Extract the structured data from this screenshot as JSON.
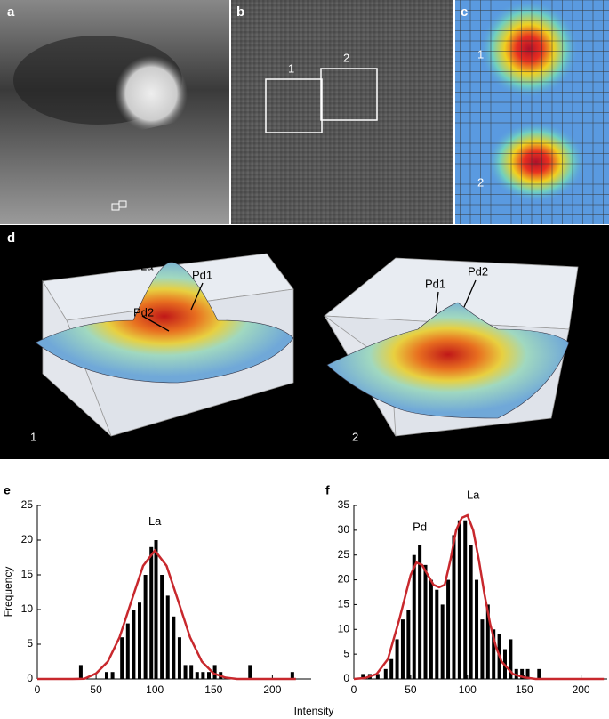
{
  "panels": {
    "a": {
      "letter": "a"
    },
    "b": {
      "letter": "b",
      "boxes": [
        "1",
        "2"
      ]
    },
    "c": {
      "letter": "c",
      "labels": [
        "1",
        "2"
      ]
    },
    "d": {
      "letter": "d",
      "plots": [
        {
          "label": "1",
          "annotations": [
            "La",
            "Pd1",
            "Pd2"
          ]
        },
        {
          "label": "2",
          "annotations": [
            "Pd1",
            "Pd2"
          ]
        }
      ]
    }
  },
  "shared_xlabel": "Intensity",
  "chart_data": [
    {
      "type": "bar",
      "panel": "e",
      "ylabel": "Frequency",
      "annotations": [
        "La"
      ],
      "x": [
        37,
        59,
        64,
        72,
        77,
        82,
        87,
        92,
        97,
        101,
        106,
        111,
        116,
        121,
        126,
        131,
        136,
        141,
        146,
        151,
        156,
        181,
        217
      ],
      "values": [
        2,
        1,
        1,
        6,
        8,
        10,
        11,
        15,
        19,
        20,
        15,
        12,
        9,
        6,
        2,
        2,
        1,
        1,
        1,
        2,
        1,
        2,
        1
      ],
      "color": "#000000",
      "fit": {
        "x": [
          0,
          10,
          20,
          30,
          40,
          50,
          60,
          70,
          80,
          90,
          100,
          110,
          120,
          130,
          140,
          150,
          160,
          170,
          180,
          200,
          220
        ],
        "values": [
          0,
          0,
          0,
          0,
          0.02,
          0.8,
          2.5,
          6,
          11.2,
          16.3,
          18.5,
          16.3,
          11.2,
          6,
          2.5,
          0.8,
          0.2,
          0,
          0,
          0,
          0
        ],
        "color": "#c8282d"
      },
      "xlim": [
        0,
        233
      ],
      "ylim": [
        0,
        25
      ],
      "xticks": [
        0,
        50,
        100,
        150,
        200
      ],
      "yticks": [
        0,
        5,
        10,
        15,
        20,
        25
      ]
    },
    {
      "type": "bar",
      "panel": "f",
      "annotations": [
        "Pd",
        "La"
      ],
      "x": [
        8,
        14,
        21,
        28,
        33,
        38,
        43,
        48,
        53,
        58,
        63,
        68,
        73,
        78,
        83,
        88,
        93,
        98,
        103,
        108,
        113,
        118,
        123,
        128,
        133,
        138,
        143,
        148,
        153,
        163
      ],
      "values": [
        1,
        1,
        1,
        2,
        4,
        8,
        12,
        14,
        25,
        27,
        23,
        20,
        18,
        15,
        20,
        29,
        32,
        32,
        27,
        20,
        12,
        15,
        10,
        9,
        6,
        8,
        2,
        2,
        2,
        2
      ],
      "color": "#000000",
      "fit": {
        "x": [
          0,
          10,
          20,
          30,
          40,
          50,
          55,
          60,
          65,
          70,
          75,
          80,
          85,
          90,
          95,
          100,
          105,
          110,
          115,
          120,
          125,
          130,
          140,
          150,
          160,
          180,
          220
        ],
        "values": [
          0,
          0.2,
          1,
          4,
          12,
          21,
          23.5,
          23,
          21,
          19,
          18.5,
          19,
          24,
          30,
          32.5,
          33,
          30,
          24,
          17,
          11,
          6.5,
          3.5,
          1,
          0.3,
          0,
          0,
          0
        ],
        "color": "#c8282d"
      },
      "xlim": [
        0,
        223
      ],
      "ylim": [
        0,
        35
      ],
      "xticks": [
        0,
        50,
        100,
        150,
        200
      ],
      "yticks": [
        0,
        5,
        10,
        15,
        20,
        25,
        30,
        35
      ]
    }
  ]
}
